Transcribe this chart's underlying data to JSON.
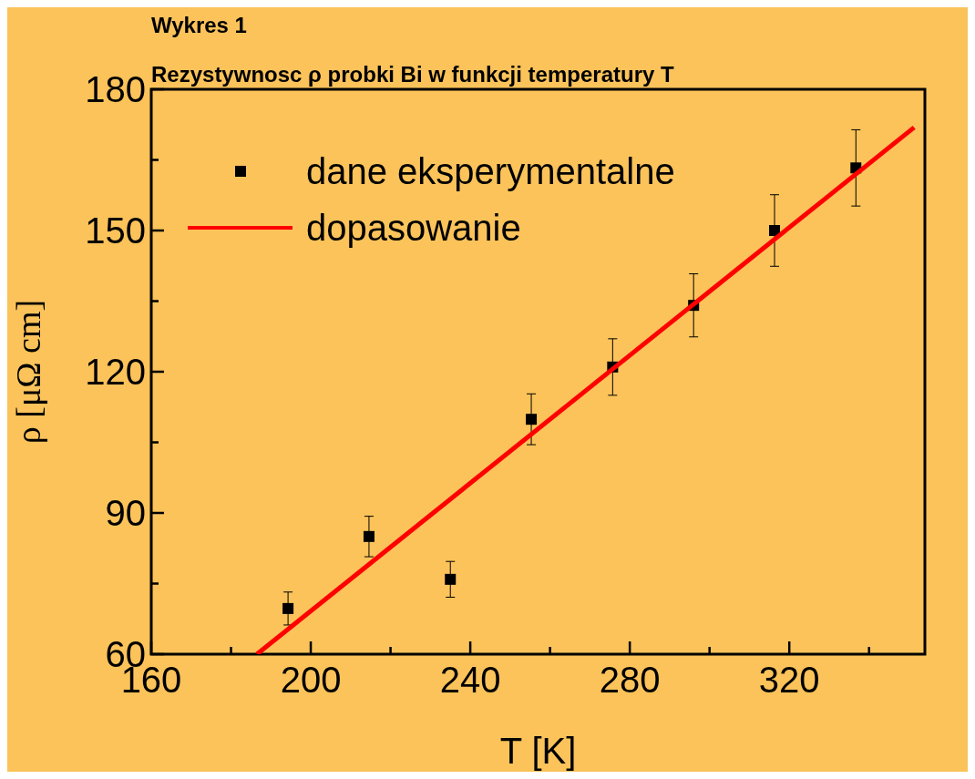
{
  "chart_data": {
    "type": "scatter",
    "title": "Wykres 1",
    "subtitle": "Rezystywnosc ρ probki  Bi w funkcji temperatury T",
    "xlabel": "T [K]",
    "ylabel": "ρ [μΩ cm]",
    "xlim": [
      160,
      354
    ],
    "ylim": [
      60,
      180
    ],
    "xticks": [
      160,
      {
        "value": 180,
        "label": null
      },
      200,
      {
        "value": 220,
        "label": null
      },
      240,
      {
        "value": 260,
        "label": null
      },
      280,
      {
        "value": 300,
        "label": null
      },
      320,
      {
        "value": 340,
        "label": null
      }
    ],
    "yticks": [
      60,
      {
        "value": 75,
        "label": null
      },
      90,
      {
        "value": 105,
        "label": null
      },
      120,
      {
        "value": 135,
        "label": null
      },
      150,
      {
        "value": 165,
        "label": null
      },
      180
    ],
    "series": [
      {
        "name": "dane eksperymentalne",
        "color": "#000000",
        "marker": "square",
        "x": [
          194.3,
          214.6,
          235,
          255.3,
          275.7,
          296,
          316.3,
          336.7
        ],
        "values": [
          69.7,
          85,
          75.9,
          109.9,
          121,
          134.1,
          150,
          163.3
        ],
        "errors": [
          3.5,
          4.3,
          3.8,
          5.4,
          6,
          6.7,
          7.6,
          8.1
        ]
      },
      {
        "name": "dopasowanie",
        "type": "line",
        "color": "#ff0000",
        "x": [
          186.5,
          351.3
        ],
        "values": [
          60,
          171.9
        ]
      }
    ],
    "legend": "top left",
    "grid": false
  }
}
